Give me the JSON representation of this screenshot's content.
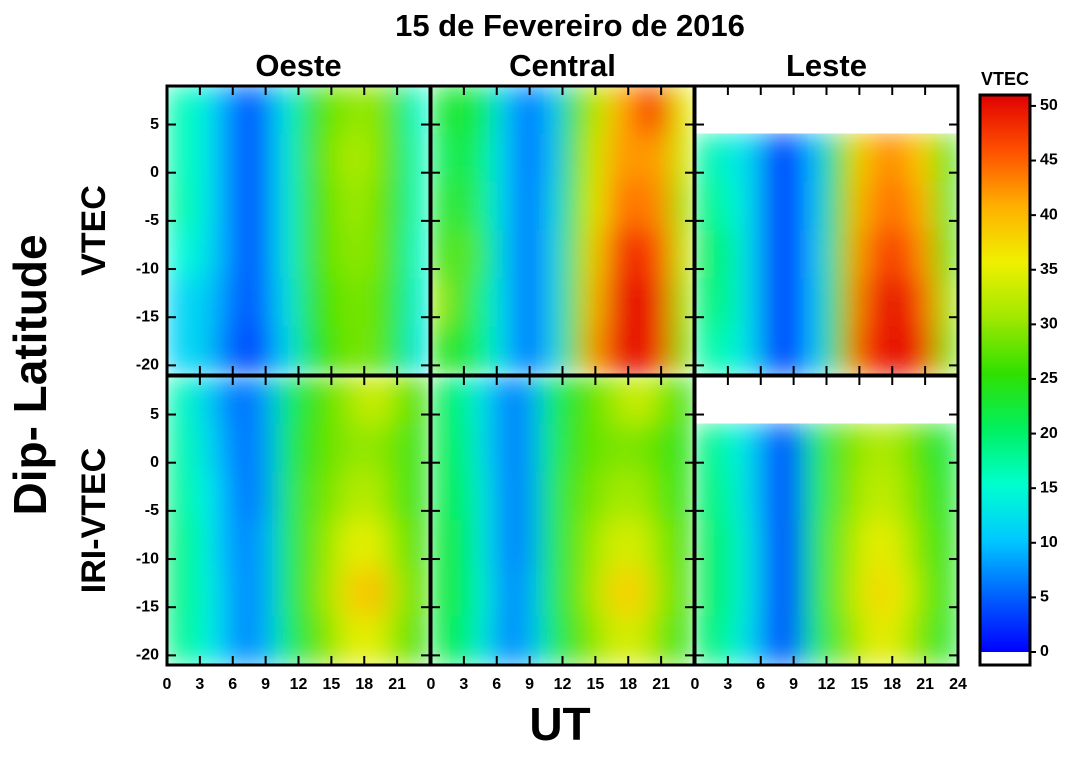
{
  "chart_data": {
    "type": "heatmap",
    "title": "15 de Fevereiro de 2016",
    "columns": [
      "Oeste",
      "Central",
      "Leste"
    ],
    "rows": [
      "VTEC",
      "IRI-VTEC"
    ],
    "ylabel": "Dip- Latitude",
    "xlabel": "UT",
    "x": [
      1,
      3,
      5,
      7,
      9,
      11,
      13,
      15,
      17,
      19,
      21,
      23
    ],
    "y": [
      6.5,
      1.5,
      -3.5,
      -8.5,
      -13.5,
      -18.5
    ],
    "xlim": [
      0,
      24
    ],
    "ylim": [
      -21,
      9
    ],
    "xticks": [
      0,
      3,
      6,
      9,
      12,
      15,
      18,
      21,
      24
    ],
    "yticks": [
      -20,
      -15,
      -10,
      -5,
      0,
      5
    ],
    "colorbar": {
      "label": "VTEC",
      "clim": [
        0,
        51
      ],
      "ticks": [
        0,
        5,
        10,
        15,
        20,
        25,
        30,
        35,
        40,
        45,
        50
      ],
      "colors": [
        "#0000ff",
        "#0060ff",
        "#00c8ff",
        "#00ffd0",
        "#00f060",
        "#30e000",
        "#a0e800",
        "#f0f000",
        "#ffb000",
        "#ff5000",
        "#e00000"
      ]
    },
    "panels": [
      {
        "values": [
          [
            17,
            15,
            9,
            4,
            6,
            14,
            24,
            28,
            30,
            30,
            24,
            15
          ],
          [
            17,
            15,
            9,
            4,
            6,
            14,
            25,
            29,
            32,
            30,
            25,
            16
          ],
          [
            18,
            15,
            9,
            4,
            6,
            14,
            25,
            28,
            31,
            29,
            25,
            16
          ],
          [
            15,
            14,
            9,
            4,
            6,
            14,
            25,
            28,
            30,
            29,
            24,
            15
          ],
          [
            11,
            12,
            8,
            4,
            6,
            13,
            24,
            27,
            29,
            28,
            23,
            14
          ],
          [
            11,
            12,
            7,
            3,
            5,
            12,
            23,
            26,
            29,
            28,
            22,
            13
          ]
        ]
      },
      {
        "values": [
          [
            22,
            24,
            20,
            10,
            4,
            10,
            25,
            32,
            40,
            45,
            48,
            35
          ],
          [
            20,
            24,
            18,
            10,
            4,
            10,
            26,
            34,
            42,
            42,
            42,
            33
          ],
          [
            22,
            26,
            18,
            10,
            4,
            11,
            26,
            35,
            44,
            44,
            43,
            30
          ],
          [
            24,
            28,
            20,
            10,
            4,
            11,
            27,
            38,
            48,
            48,
            46,
            32
          ],
          [
            30,
            26,
            18,
            10,
            4,
            11,
            27,
            40,
            50,
            50,
            48,
            30
          ],
          [
            24,
            24,
            18,
            10,
            4,
            11,
            27,
            42,
            50,
            50,
            48,
            28
          ]
        ]
      },
      {
        "values": [
          [
            null,
            null,
            null,
            null,
            null,
            null,
            null,
            null,
            null,
            null,
            null,
            null
          ],
          [
            18,
            14,
            12,
            4,
            3,
            10,
            25,
            38,
            43,
            42,
            38,
            25
          ],
          [
            20,
            16,
            12,
            4,
            3,
            10,
            26,
            40,
            44,
            44,
            40,
            24
          ],
          [
            22,
            18,
            12,
            4,
            3,
            10,
            27,
            42,
            47,
            47,
            42,
            26
          ],
          [
            20,
            18,
            12,
            4,
            3,
            10,
            26,
            44,
            50,
            50,
            45,
            30
          ],
          [
            18,
            16,
            12,
            4,
            3,
            10,
            26,
            46,
            50,
            50,
            48,
            28
          ]
        ]
      },
      {
        "values": [
          [
            17,
            13,
            8,
            5,
            8,
            20,
            25,
            28,
            31,
            34,
            30,
            25
          ],
          [
            18,
            14,
            9,
            5,
            8,
            21,
            26,
            28,
            30,
            30,
            28,
            24
          ],
          [
            19,
            15,
            10,
            5,
            8,
            21,
            27,
            29,
            32,
            32,
            28,
            24
          ],
          [
            20,
            16,
            10,
            6,
            9,
            21,
            27,
            31,
            35,
            35,
            30,
            25
          ],
          [
            20,
            16,
            11,
            6,
            9,
            21,
            27,
            32,
            38,
            40,
            32,
            26
          ],
          [
            19,
            16,
            11,
            6,
            9,
            20,
            26,
            30,
            35,
            35,
            30,
            25
          ]
        ]
      },
      {
        "values": [
          [
            22,
            18,
            12,
            6,
            8,
            20,
            25,
            28,
            31,
            34,
            30,
            25
          ],
          [
            22,
            19,
            12,
            6,
            8,
            20,
            26,
            28,
            29,
            29,
            27,
            24
          ],
          [
            22,
            20,
            13,
            6,
            8,
            21,
            27,
            29,
            31,
            31,
            28,
            24
          ],
          [
            23,
            21,
            13,
            6,
            8,
            21,
            27,
            31,
            34,
            34,
            30,
            25
          ],
          [
            23,
            21,
            14,
            6,
            9,
            21,
            27,
            32,
            38,
            38,
            31,
            25
          ],
          [
            22,
            20,
            13,
            6,
            9,
            20,
            26,
            30,
            34,
            34,
            29,
            24
          ]
        ]
      },
      {
        "values": [
          [
            null,
            null,
            null,
            null,
            null,
            null,
            null,
            null,
            null,
            null,
            null,
            null
          ],
          [
            20,
            16,
            12,
            5,
            4,
            20,
            27,
            30,
            32,
            30,
            26,
            22
          ],
          [
            21,
            17,
            12,
            5,
            4,
            20,
            27,
            31,
            33,
            31,
            27,
            23
          ],
          [
            22,
            18,
            13,
            5,
            4,
            21,
            28,
            33,
            36,
            33,
            28,
            24
          ],
          [
            22,
            18,
            13,
            5,
            4,
            21,
            28,
            34,
            38,
            35,
            29,
            24
          ],
          [
            21,
            17,
            12,
            5,
            4,
            20,
            27,
            32,
            36,
            33,
            28,
            23
          ]
        ]
      }
    ]
  }
}
